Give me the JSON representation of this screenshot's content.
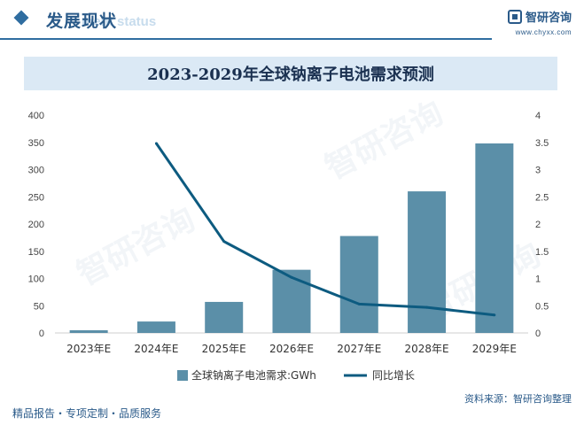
{
  "header": {
    "title": "发展现状",
    "title_ghost": "ment status",
    "brand_name": "智研咨询",
    "brand_url": "www.chyxx.com"
  },
  "chart_data": {
    "type": "bar",
    "title": "2023-2029年全球钠离子电池需求预测",
    "categories": [
      "2023年E",
      "2024年E",
      "2025年E",
      "2026年E",
      "2027年E",
      "2028年E",
      "2029年E"
    ],
    "series": [
      {
        "name": "全球钠离子电池需求:GWh",
        "type": "bar",
        "axis": "left",
        "values": [
          5,
          21,
          57,
          116,
          178,
          260,
          348
        ]
      },
      {
        "name": "同比增长",
        "type": "line",
        "axis": "right",
        "values": [
          null,
          3.48,
          1.68,
          1.02,
          0.53,
          0.47,
          0.33
        ]
      }
    ],
    "y_left": {
      "min": 0,
      "max": 400,
      "ticks": [
        0,
        50,
        100,
        150,
        200,
        250,
        300,
        350,
        400
      ]
    },
    "y_right": {
      "min": 0,
      "max": 4,
      "ticks": [
        "0",
        "0.5",
        "1",
        "1.5",
        "2",
        "2.5",
        "3",
        "3.5",
        "4"
      ]
    },
    "legend_position": "bottom",
    "colors": {
      "bar": "#5b8fa8",
      "line": "#0d5b80"
    }
  },
  "footer": {
    "left": "精品报告・专项定制・品质服务",
    "source": "资料来源：智研咨询整理"
  },
  "watermark": "智研咨询"
}
